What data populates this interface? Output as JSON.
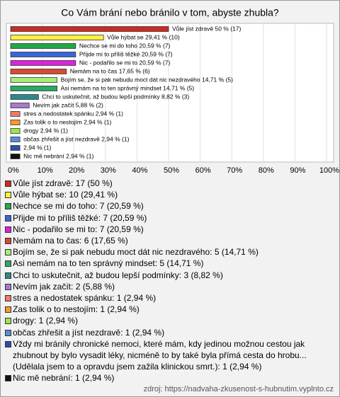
{
  "chart_data": {
    "type": "bar",
    "orientation": "horizontal",
    "title": "Co Vám brání nebo bránilo v tom, abyste zhubla?",
    "values": [
      50,
      29.41,
      20.59,
      20.59,
      20.59,
      17.65,
      14.71,
      14.71,
      8.82,
      5.88,
      2.94,
      2.94,
      2.94,
      2.94,
      2.94,
      2.94
    ],
    "value_labels": [
      "Vůle jíst zdravě 50 % (17)",
      "Vůle hýbat se 29,41 % (10)",
      "Nechce se mi do toho 20,59 % (7)",
      "Přijde mi to příliš těžké 20,59 % (7)",
      "Nic - podařilo se mi to 20,59 % (7)",
      "Nemám na to čas 17,65 % (6)",
      "Bojím se, že si pak nebudu moct dát nic nezdravého 14,71 % (5)",
      "Asi nemám na to ten správný mindset 14,71 % (5)",
      "Chci to uskutečnit, až budou lepší podmínky 8,82 % (3)",
      "Nevím jak začít 5,88 % (2)",
      "stres a nedostatek spánku 2,94 % (1)",
      "Zas tolik o to nestojím 2,94 % (1)",
      "drogy 2,94 % (1)",
      "občas zhřešit a jíst nezdravě 2,94 % (1)",
      "2,94 % (1)",
      "Nic mě nebrání 2,94 % (1)"
    ],
    "colors": [
      "#cc2a22",
      "#fff040",
      "#22a844",
      "#3a66dd",
      "#dd22dd",
      "#d84a33",
      "#a6ee77",
      "#2aa866",
      "#2a8a8a",
      "#a77acc",
      "#ee7a6a",
      "#f59a2a",
      "#9be64a",
      "#5a88dd",
      "#2c4faa",
      "#111111"
    ],
    "legend": [
      "Vůle jíst zdravě: 17 (50 %)",
      "Vůle hýbat se: 10 (29,41 %)",
      "Nechce se mi do toho: 7 (20,59 %)",
      "Přijde mi to příliš těžké: 7 (20,59 %)",
      "Nic - podařilo se mi to: 7 (20,59 %)",
      "Nemám na to čas: 6 (17,65 %)",
      "Bojím se, že si pak nebudu moct dát nic nezdravého: 5 (14,71 %)",
      "Asi nemám na to ten správný mindset: 5 (14,71 %)",
      "Chci to uskutečnit, až budou lepší podmínky: 3 (8,82 %)",
      "Nevím jak začít: 2 (5,88 %)",
      "stres a nedostatek spánku: 1 (2,94 %)",
      "Zas tolik o to nestojím: 1 (2,94 %)",
      "drogy: 1 (2,94 %)",
      "občas zhřešit a jíst nezdravě: 1 (2,94 %)",
      "Vždy mi bránily chronické nemoci, které mám, kdy jedinou možnou cestou jak zhubnout by bylo vysadit léky, nicméně to by také byla přímá cesta do hrobu... (Udělala jsem to a opravdu jsem zažila klinickou smrt.): 1 (2,94 %)",
      "Nic mě nebrání: 1 (2,94 %)"
    ],
    "xlim": [
      0,
      100
    ],
    "xticks": [
      {
        "value": 0,
        "label": "0%"
      },
      {
        "value": 10,
        "label": "10%"
      },
      {
        "value": 20,
        "label": "20%"
      },
      {
        "value": 30,
        "label": "30%"
      },
      {
        "value": 40,
        "label": "40%"
      },
      {
        "value": 50,
        "label": "50%"
      },
      {
        "value": 60,
        "label": "60%"
      },
      {
        "value": 70,
        "label": "70%"
      },
      {
        "value": 80,
        "label": "80%"
      },
      {
        "value": 90,
        "label": "90%"
      },
      {
        "value": 100,
        "label": "100%"
      }
    ],
    "grid": true,
    "source": "zdroj: https://nadvaha-zkusenost-s-hubnutim.vyplnto.cz"
  }
}
